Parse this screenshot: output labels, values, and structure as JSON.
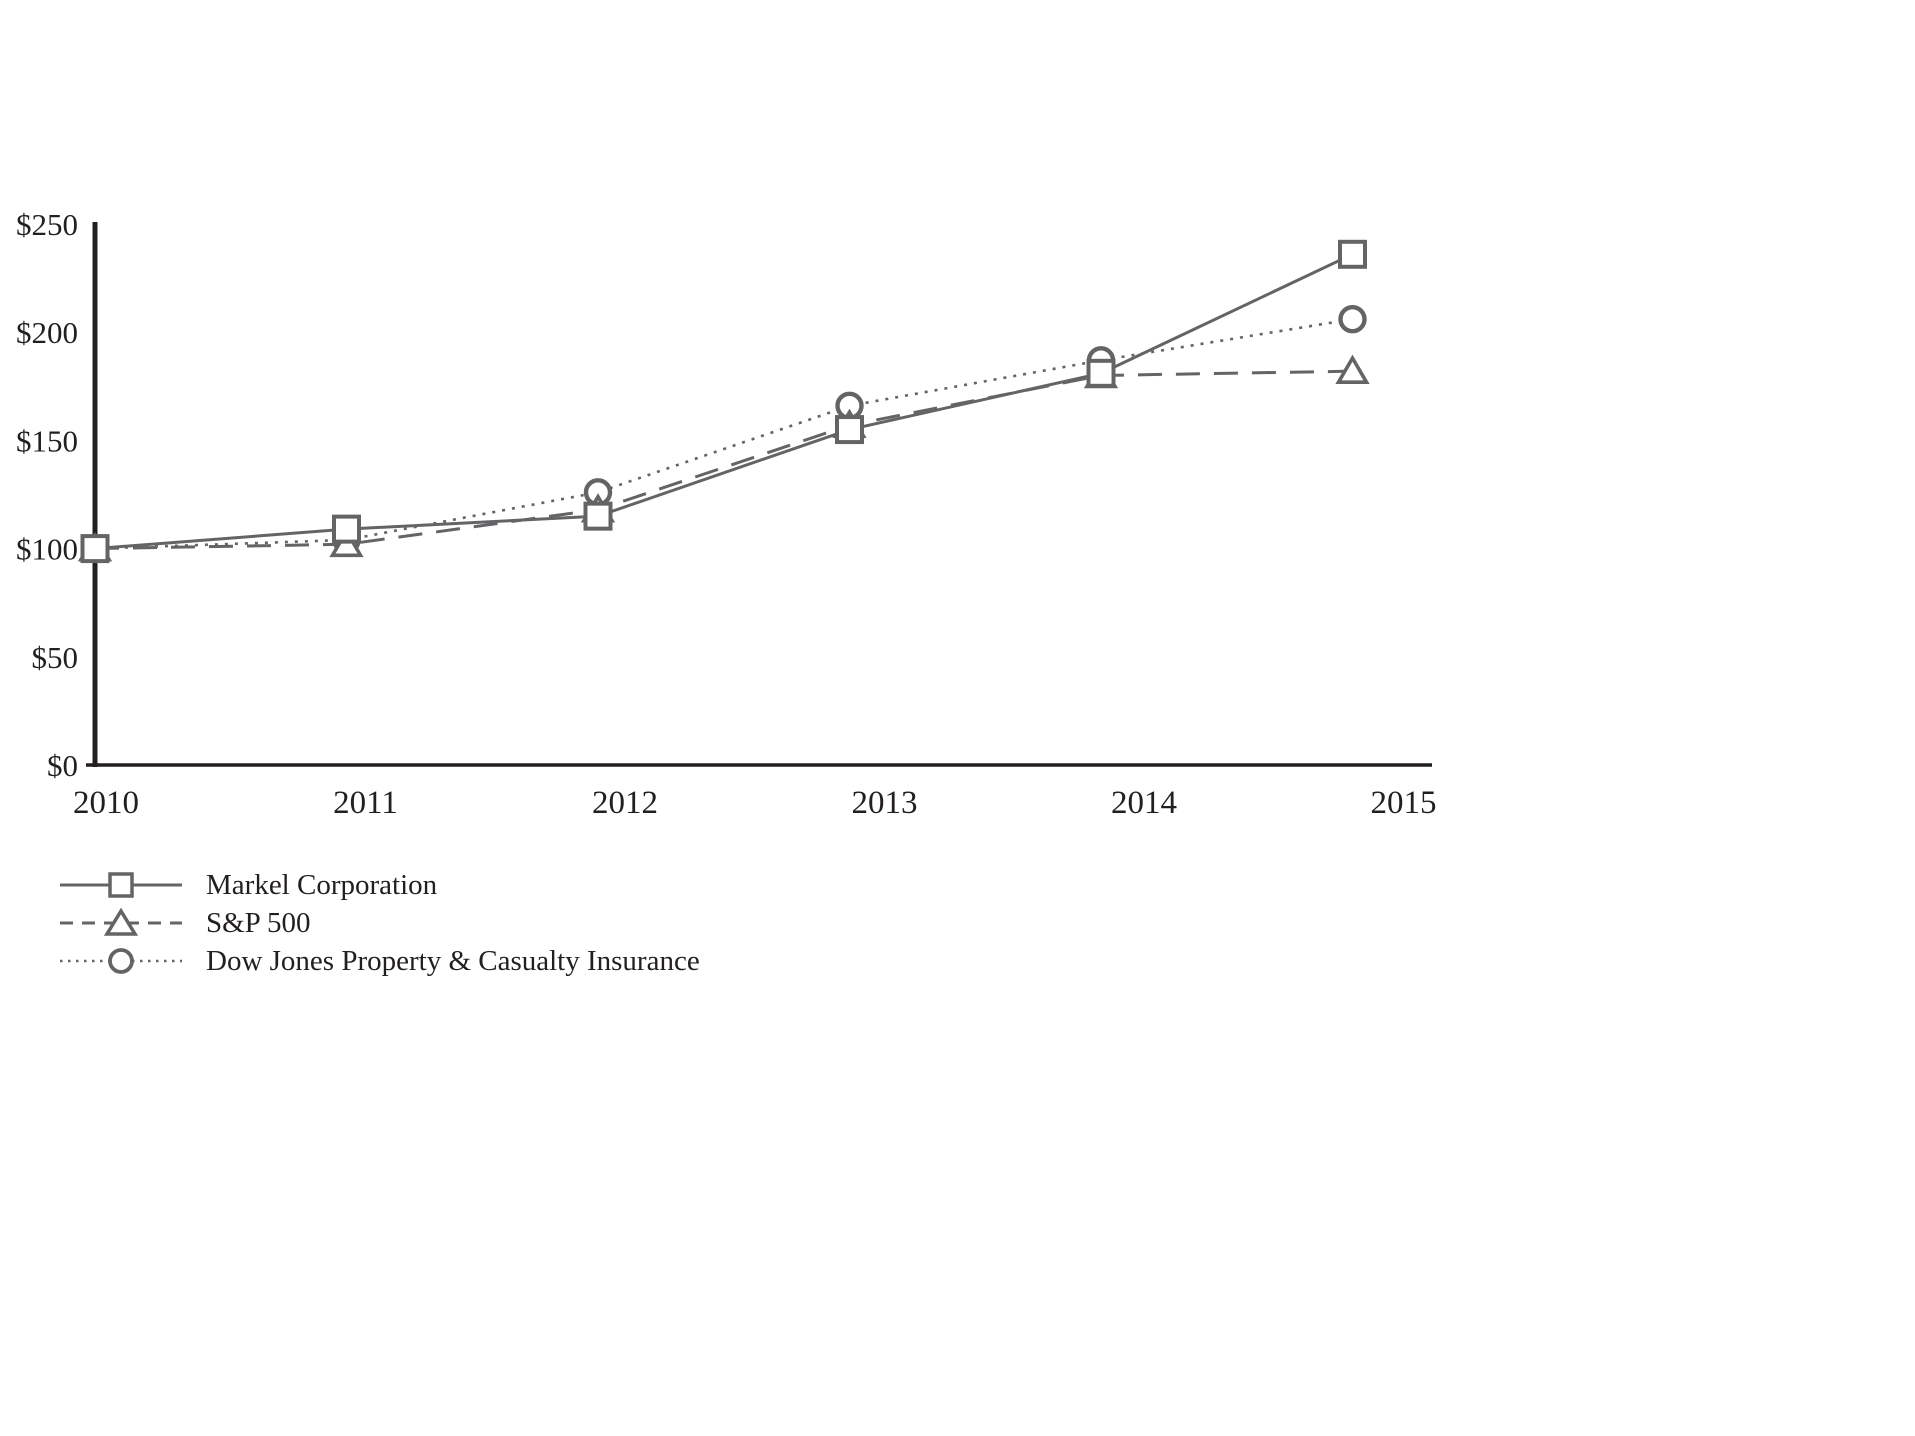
{
  "chart_data": {
    "type": "line",
    "title": "",
    "xlabel": "",
    "ylabel": "",
    "x": [
      2010,
      2011,
      2012,
      2013,
      2014,
      2015
    ],
    "x_tick_labels": [
      "2010",
      "2011",
      "2012",
      "2013",
      "2014",
      "2015"
    ],
    "y_tick_labels": [
      "$0",
      "$50",
      "$100",
      "$150",
      "$200",
      "$250"
    ],
    "y_tick_values": [
      0,
      50,
      100,
      150,
      200,
      250
    ],
    "ylim": [
      0,
      250
    ],
    "grid": false,
    "legend_position": "bottom-left",
    "series": [
      {
        "name": "Markel Corporation",
        "marker": "square",
        "line_style": "solid",
        "values": [
          100,
          109,
          115,
          155,
          181,
          236
        ]
      },
      {
        "name": "S&P 500",
        "marker": "triangle",
        "line_style": "dashed",
        "values": [
          100,
          102,
          118,
          157,
          180,
          182
        ]
      },
      {
        "name": "Dow Jones Property & Casualty Insurance",
        "marker": "circle",
        "line_style": "dotted",
        "values": [
          100,
          104,
          126,
          166,
          187,
          206
        ]
      }
    ],
    "colors": {
      "line": "#636466",
      "axis": "#231f20",
      "text": "#231f20",
      "marker_fill": "#ffffff"
    }
  }
}
